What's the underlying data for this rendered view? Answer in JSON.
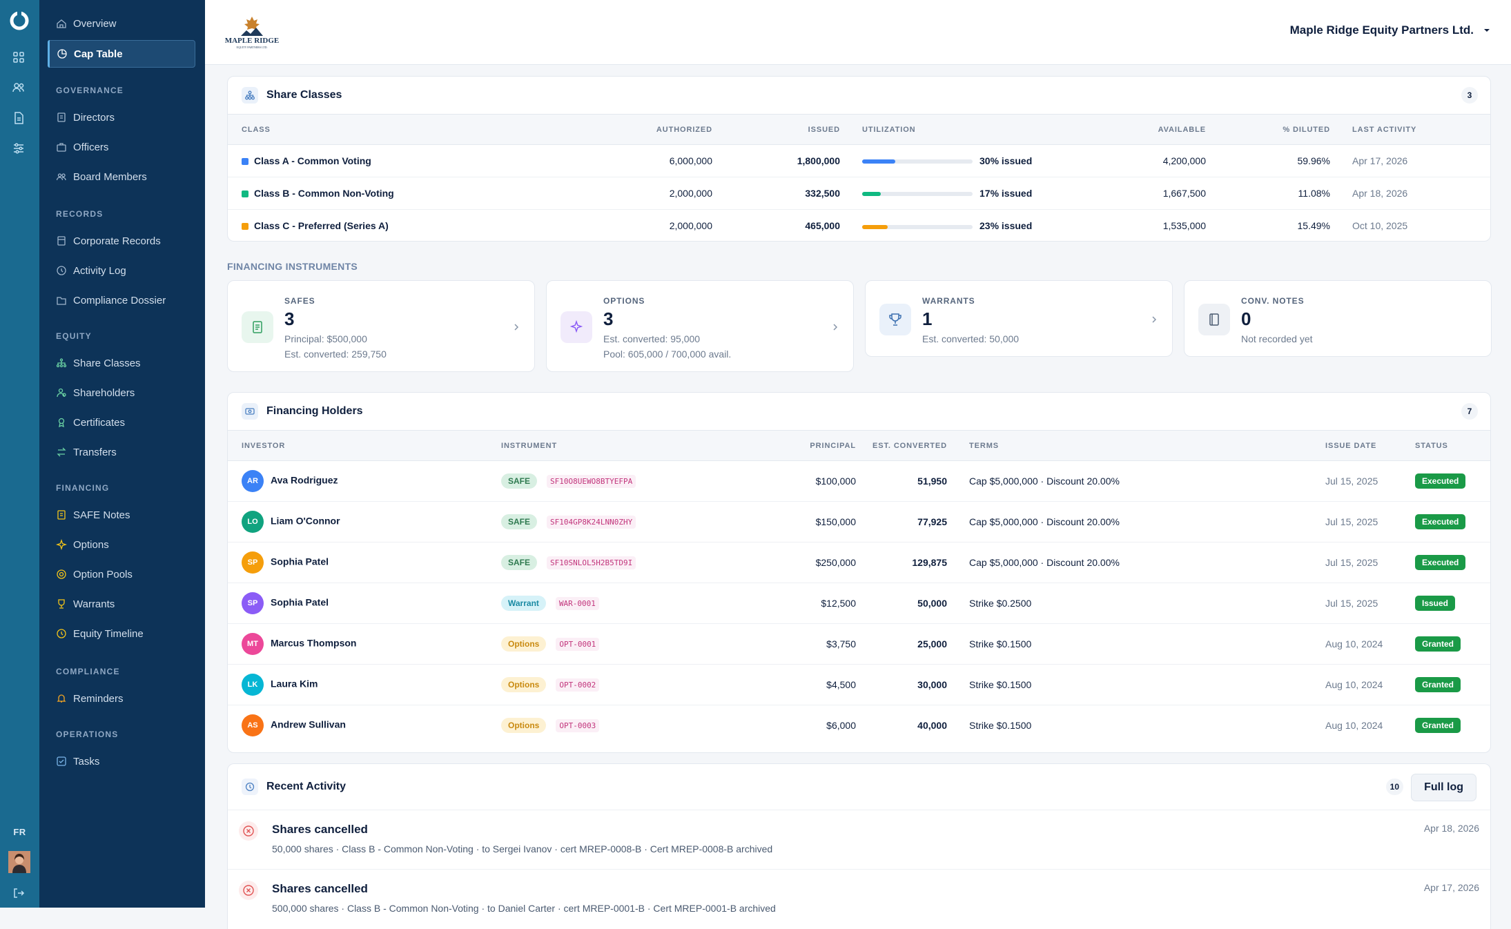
{
  "rail": {
    "lang": "FR"
  },
  "sidebar": {
    "top_items": [
      {
        "label": "Overview",
        "icon": "home-icon"
      },
      {
        "label": "Cap Table",
        "icon": "pie-chart-icon",
        "active": true
      }
    ],
    "sections": [
      {
        "title": "GOVERNANCE",
        "items": [
          {
            "label": "Directors"
          },
          {
            "label": "Officers"
          },
          {
            "label": "Board Members"
          }
        ]
      },
      {
        "title": "RECORDS",
        "items": [
          {
            "label": "Corporate Records"
          },
          {
            "label": "Activity Log"
          },
          {
            "label": "Compliance Dossier"
          }
        ]
      },
      {
        "title": "EQUITY",
        "items": [
          {
            "label": "Share Classes"
          },
          {
            "label": "Shareholders"
          },
          {
            "label": "Certificates"
          },
          {
            "label": "Transfers"
          }
        ]
      },
      {
        "title": "FINANCING",
        "items": [
          {
            "label": "SAFE Notes"
          },
          {
            "label": "Options"
          },
          {
            "label": "Option Pools"
          },
          {
            "label": "Warrants"
          },
          {
            "label": "Equity Timeline"
          }
        ]
      },
      {
        "title": "COMPLIANCE",
        "items": [
          {
            "label": "Reminders"
          }
        ]
      },
      {
        "title": "OPERATIONS",
        "items": [
          {
            "label": "Tasks"
          }
        ]
      }
    ]
  },
  "header": {
    "logo_text": "MAPLE RIDGE",
    "logo_subtext": "EQUITY PARTNERS LTD.",
    "company": "Maple Ridge Equity Partners Ltd."
  },
  "share_classes": {
    "title": "Share Classes",
    "count": "3",
    "columns": [
      "CLASS",
      "AUTHORIZED",
      "ISSUED",
      "UTILIZATION",
      "AVAILABLE",
      "% DILUTED",
      "LAST ACTIVITY"
    ],
    "rows": [
      {
        "name": "Class A - Common Voting",
        "color": "#3b82f6",
        "authorized": "6,000,000",
        "issued": "1,800,000",
        "utilization": 0.3,
        "utilization_label": "30% issued",
        "available": "4,200,000",
        "diluted": "59.96%",
        "last_activity": "Apr 17, 2026"
      },
      {
        "name": "Class B - Common Non-Voting",
        "color": "#10b981",
        "authorized": "2,000,000",
        "issued": "332,500",
        "utilization": 0.17,
        "utilization_label": "17% issued",
        "available": "1,667,500",
        "diluted": "11.08%",
        "last_activity": "Apr 18, 2026"
      },
      {
        "name": "Class C - Preferred (Series A)",
        "color": "#f59e0b",
        "authorized": "2,000,000",
        "issued": "465,000",
        "utilization": 0.23,
        "utilization_label": "23% issued",
        "available": "1,535,000",
        "diluted": "15.49%",
        "last_activity": "Oct 10, 2025"
      }
    ]
  },
  "financing_instruments": {
    "label": "FINANCING INSTRUMENTS",
    "cards": [
      {
        "label": "SAFES",
        "count": "3",
        "line1": "Principal: $500,000",
        "line2": "Est. converted: 259,750",
        "icon": "document-icon"
      },
      {
        "label": "OPTIONS",
        "count": "3",
        "line1": "Est. converted: 95,000",
        "line2": "Pool: 605,000 / 700,000 avail.",
        "icon": "sparkles-icon"
      },
      {
        "label": "WARRANTS",
        "count": "1",
        "line1": "Est. converted: 50,000",
        "icon": "trophy-icon"
      },
      {
        "label": "CONV. NOTES",
        "count": "0",
        "line1": "Not recorded yet",
        "icon": "notebook-icon"
      }
    ]
  },
  "financing_holders": {
    "title": "Financing Holders",
    "count": "7",
    "columns": [
      "INVESTOR",
      "INSTRUMENT",
      "PRINCIPAL",
      "EST. CONVERTED",
      "TERMS",
      "ISSUE DATE",
      "STATUS"
    ],
    "rows": [
      {
        "initials": "AR",
        "avatar_color": "#3b82f6",
        "name": "Ava Rodriguez",
        "instrument": "SAFE",
        "code": "SF10O8UEWO8BTYEFPA",
        "principal": "$100,000",
        "converted": "51,950",
        "terms": "Cap $5,000,000 · Discount 20.00%",
        "date": "Jul 15, 2025",
        "status": "Executed"
      },
      {
        "initials": "LO",
        "avatar_color": "#10a37f",
        "name": "Liam O'Connor",
        "instrument": "SAFE",
        "code": "SF104GP8K24LNN0ZHY",
        "principal": "$150,000",
        "converted": "77,925",
        "terms": "Cap $5,000,000 · Discount 20.00%",
        "date": "Jul 15, 2025",
        "status": "Executed"
      },
      {
        "initials": "SP",
        "avatar_color": "#f59e0b",
        "name": "Sophia Patel",
        "instrument": "SAFE",
        "code": "SF10SNLOL5H2B5TD9I",
        "principal": "$250,000",
        "converted": "129,875",
        "terms": "Cap $5,000,000 · Discount 20.00%",
        "date": "Jul 15, 2025",
        "status": "Executed"
      },
      {
        "initials": "SP",
        "avatar_color": "#8b5cf6",
        "name": "Sophia Patel",
        "instrument": "Warrant",
        "code": "WAR-0001",
        "principal": "$12,500",
        "converted": "50,000",
        "terms": "Strike $0.2500",
        "date": "Jul 15, 2025",
        "status": "Issued"
      },
      {
        "initials": "MT",
        "avatar_color": "#ec4899",
        "name": "Marcus Thompson",
        "instrument": "Options",
        "code": "OPT-0001",
        "principal": "$3,750",
        "converted": "25,000",
        "terms": "Strike $0.1500",
        "date": "Aug 10, 2024",
        "status": "Granted"
      },
      {
        "initials": "LK",
        "avatar_color": "#06b6d4",
        "name": "Laura Kim",
        "instrument": "Options",
        "code": "OPT-0002",
        "principal": "$4,500",
        "converted": "30,000",
        "terms": "Strike $0.1500",
        "date": "Aug 10, 2024",
        "status": "Granted"
      },
      {
        "initials": "AS",
        "avatar_color": "#f97316",
        "name": "Andrew Sullivan",
        "instrument": "Options",
        "code": "OPT-0003",
        "principal": "$6,000",
        "converted": "40,000",
        "terms": "Strike $0.1500",
        "date": "Aug 10, 2024",
        "status": "Granted"
      }
    ]
  },
  "recent_activity": {
    "title": "Recent Activity",
    "count": "10",
    "button": "Full log",
    "items": [
      {
        "title": "Shares cancelled",
        "desc": "50,000 shares · Class B - Common Non-Voting · to Sergei Ivanov · cert MREP-0008-B · Cert MREP-0008-B archived",
        "date": "Apr 18, 2026"
      },
      {
        "title": "Shares cancelled",
        "desc": "500,000 shares · Class B - Common Non-Voting · to Daniel Carter · cert MREP-0001-B · Cert MREP-0001-B archived",
        "date": "Apr 17, 2026"
      }
    ]
  }
}
